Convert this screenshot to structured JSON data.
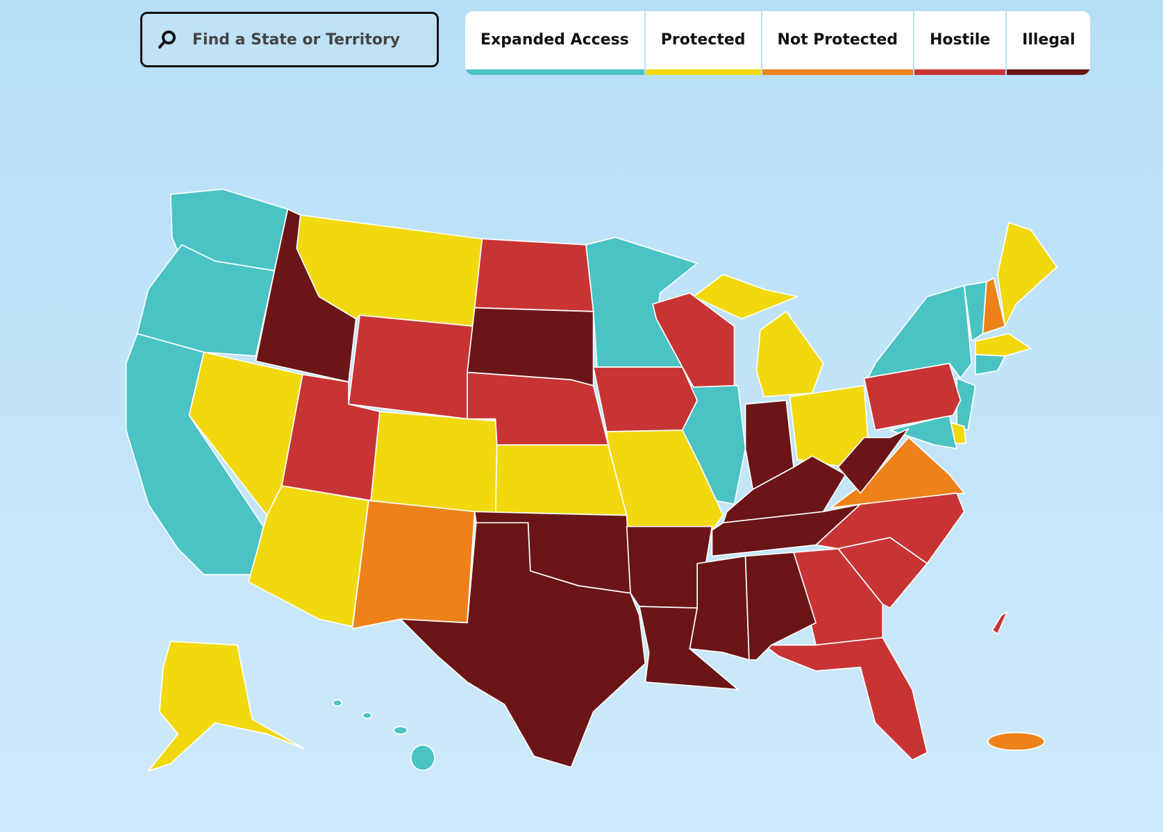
{
  "search": {
    "placeholder": "Find a State or Territory"
  },
  "legend": [
    {
      "label": "Expanded Access",
      "color": "#4bc3c4"
    },
    {
      "label": "Protected",
      "color": "#f2d90f"
    },
    {
      "label": "Not Protected",
      "color": "#ee821a"
    },
    {
      "label": "Hostile",
      "color": "#c83434"
    },
    {
      "label": "Illegal",
      "color": "#6b1517"
    }
  ]
}
